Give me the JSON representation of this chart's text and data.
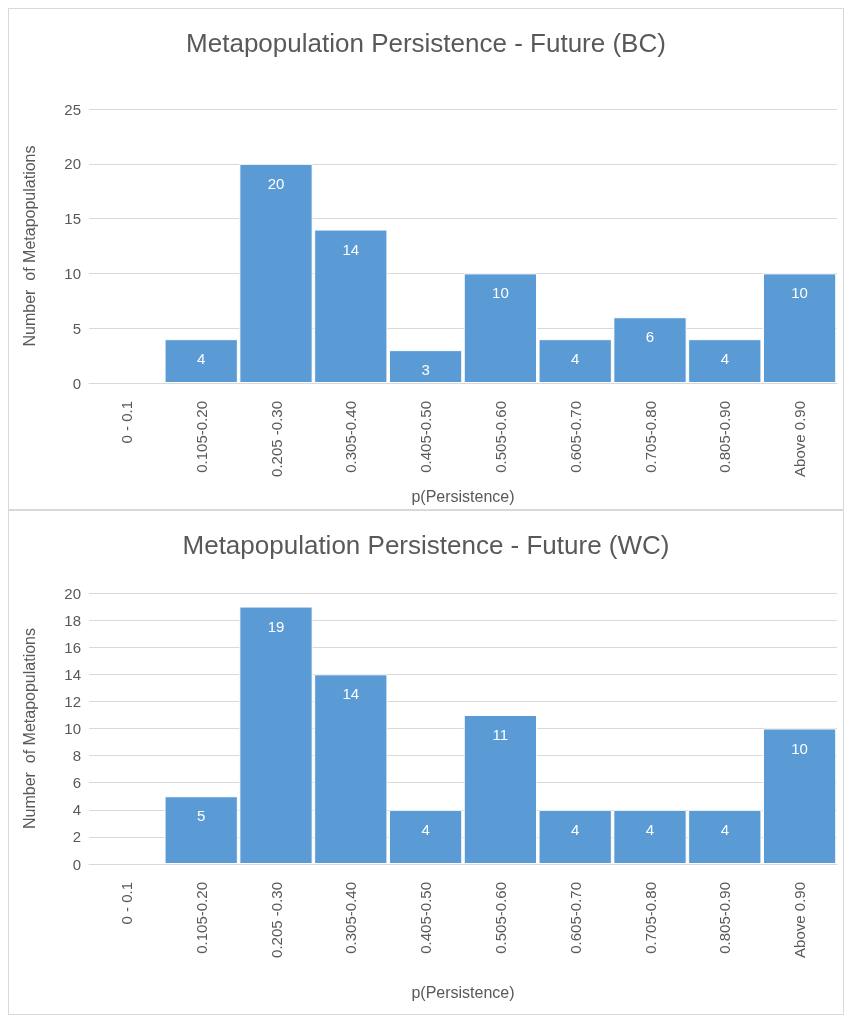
{
  "chart_data": [
    {
      "type": "bar",
      "title": "Metapopulation Persistence - Future (BC)",
      "xlabel": "p(Persistence)",
      "ylabel": "Number  of Metapopulations",
      "categories": [
        "0 - 0.1",
        "0.105-0.20",
        "0.205 -0.30",
        "0.305-0.40",
        "0.405-0.50",
        "0.505-0.60",
        "0.605-0.70",
        "0.705-0.80",
        "0.805-0.90",
        "Above 0.90"
      ],
      "values": [
        0,
        4,
        20,
        14,
        3,
        10,
        4,
        6,
        4,
        10
      ],
      "value_labels": [
        null,
        "4",
        "20",
        "14",
        "3",
        "10",
        "4",
        "6",
        "4",
        "10"
      ],
      "color": "#5b9bd5",
      "ylim": [
        0,
        25
      ],
      "yticks": [
        0,
        5,
        10,
        15,
        20,
        25
      ],
      "grid": "y"
    },
    {
      "type": "bar",
      "title": "Metapopulation Persistence - Future (WC)",
      "xlabel": "p(Persistence)",
      "ylabel": "Number  of Metapopulations",
      "categories": [
        "0 - 0.1",
        "0.105-0.20",
        "0.205 -0.30",
        "0.305-0.40",
        "0.405-0.50",
        "0.505-0.60",
        "0.605-0.70",
        "0.705-0.80",
        "0.805-0.90",
        "Above 0.90"
      ],
      "values": [
        0,
        5,
        19,
        14,
        4,
        11,
        4,
        4,
        4,
        10
      ],
      "value_labels": [
        null,
        "5",
        "19",
        "14",
        "4",
        "11",
        "4",
        "4",
        "4",
        "10"
      ],
      "color": "#5b9bd5",
      "ylim": [
        0,
        20
      ],
      "yticks": [
        0,
        2,
        4,
        6,
        8,
        10,
        12,
        14,
        16,
        18,
        20
      ],
      "grid": "y"
    }
  ]
}
